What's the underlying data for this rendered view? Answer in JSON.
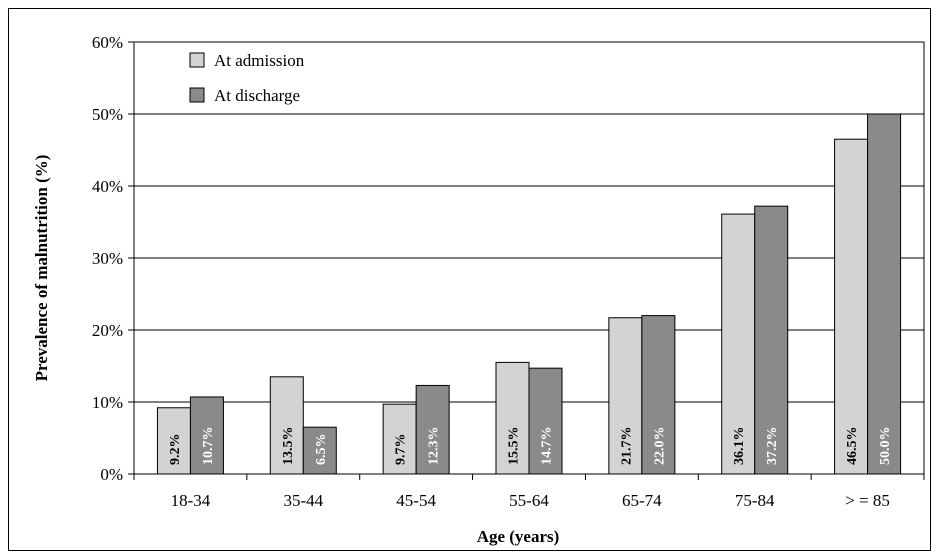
{
  "chart_data": {
    "type": "bar",
    "xlabel": "Age (years)",
    "ylabel": "Prevalence of malnutrition (%)",
    "categories": [
      "18-34",
      "35-44",
      "45-54",
      "55-64",
      "65-74",
      "75-84",
      "> = 85"
    ],
    "ylim": [
      0,
      60
    ],
    "yticks": [
      "0%",
      "10%",
      "20%",
      "30%",
      "40%",
      "50%",
      "60%"
    ],
    "grid": true,
    "legend_position": "top-left",
    "series": [
      {
        "name": "At admission",
        "color": "#d3d3d3",
        "label_color": "#000000",
        "values": [
          9.2,
          13.5,
          9.7,
          15.5,
          21.7,
          36.1,
          46.5
        ],
        "labels": [
          "9.2%",
          "13.5%",
          "9.7%",
          "15.5%",
          "21.7%",
          "36.1%",
          "46.5%"
        ]
      },
      {
        "name": "At discharge",
        "color": "#8a8a8a",
        "label_color": "#ffffff",
        "values": [
          10.7,
          6.5,
          12.3,
          14.7,
          22.0,
          37.2,
          50.0
        ],
        "labels": [
          "10.7%",
          "6.5%",
          "12.3%",
          "14.7%",
          "22.0%",
          "37.2%",
          "50.0%"
        ]
      }
    ]
  }
}
